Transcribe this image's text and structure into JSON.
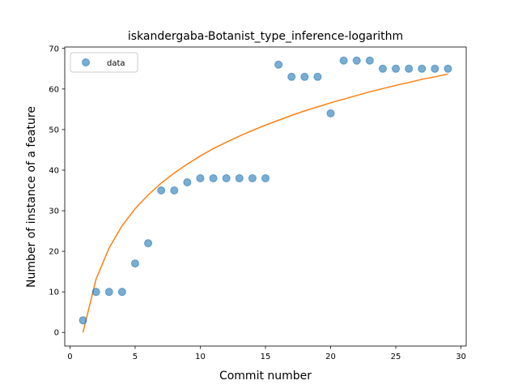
{
  "chart_data": {
    "type": "scatter",
    "title": "iskandergaba-Botanist_type_inference-logarithm",
    "xlabel": "Commit number",
    "ylabel": "Number of instance of a feature",
    "xlim": [
      -0.4,
      30.4
    ],
    "ylim": [
      -3.35,
      70.35
    ],
    "xticks": [
      0,
      5,
      10,
      15,
      20,
      25,
      30
    ],
    "yticks": [
      0,
      10,
      20,
      30,
      40,
      50,
      60,
      70
    ],
    "grid": false,
    "legend": {
      "placement": "top-left",
      "entries": [
        "data"
      ]
    },
    "series": [
      {
        "name": "data",
        "kind": "scatter",
        "color": "#1f77b4",
        "x": [
          1,
          2,
          3,
          4,
          5,
          6,
          7,
          8,
          9,
          10,
          11,
          12,
          13,
          14,
          15,
          16,
          17,
          18,
          19,
          20,
          21,
          22,
          23,
          24,
          25,
          26,
          27,
          28,
          29
        ],
        "y": [
          3,
          10,
          10,
          10,
          17,
          22,
          35,
          35,
          37,
          38,
          38,
          38,
          38,
          38,
          38,
          66,
          63,
          63,
          63,
          54,
          67,
          67,
          67,
          65,
          65,
          65,
          65,
          65,
          65
        ]
      },
      {
        "kind": "line",
        "color": "#ff7f0e",
        "x": [
          1,
          2,
          3,
          4,
          5,
          6,
          7,
          8,
          9,
          10,
          11,
          12,
          13,
          14,
          15,
          16,
          17,
          18,
          19,
          20,
          21,
          22,
          23,
          24,
          25,
          26,
          27,
          28,
          29
        ],
        "y": [
          0,
          13.1,
          20.8,
          26.3,
          30.5,
          33.9,
          36.8,
          39.3,
          41.5,
          43.5,
          45.3,
          46.9,
          48.4,
          49.8,
          51.1,
          52.3,
          53.5,
          54.6,
          55.6,
          56.6,
          57.5,
          58.4,
          59.3,
          60.1,
          60.9,
          61.6,
          62.4,
          63.0,
          63.7
        ]
      }
    ]
  }
}
